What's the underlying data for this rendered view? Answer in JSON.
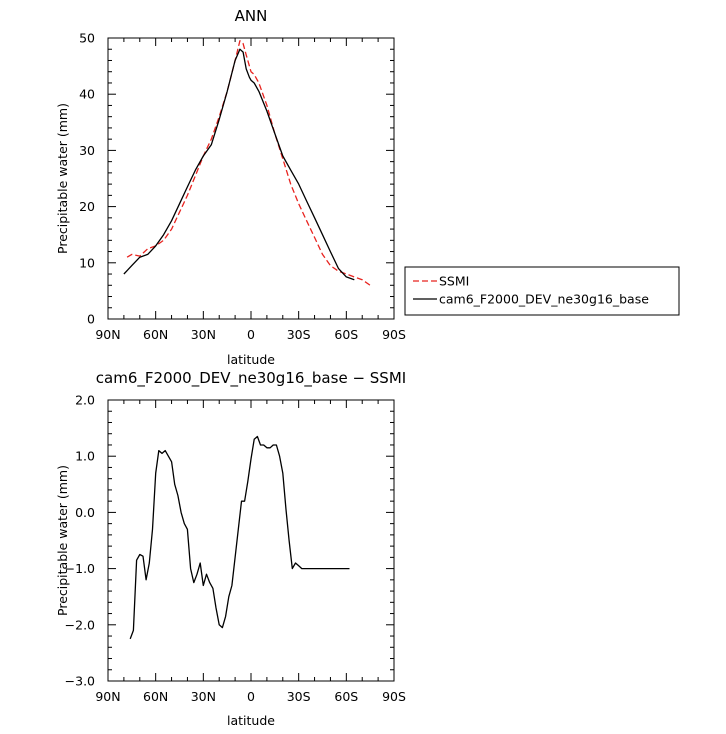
{
  "chart_data": [
    {
      "type": "line",
      "title": "ANN",
      "xlabel": "latitude",
      "ylabel": "Precipitable water (mm)",
      "xlim": [
        90,
        -90
      ],
      "ylim": [
        0,
        50
      ],
      "xticks": [
        90,
        60,
        30,
        0,
        -30,
        -60,
        -90
      ],
      "xtick_labels": [
        "90N",
        "60N",
        "30N",
        "0",
        "30S",
        "60S",
        "90S"
      ],
      "yticks": [
        0,
        10,
        20,
        30,
        40,
        50
      ],
      "ytick_labels": [
        "0",
        "10",
        "20",
        "30",
        "40",
        "50"
      ],
      "grid": false,
      "legend": "right",
      "series": [
        {
          "name": "SSMI",
          "color": "#e8231f",
          "dash": "dashed",
          "x": [
            78,
            75,
            70,
            65,
            60,
            55,
            50,
            45,
            40,
            35,
            30,
            25,
            20,
            15,
            10,
            7,
            5,
            3,
            1,
            0,
            -2,
            -5,
            -10,
            -15,
            -20,
            -25,
            -30,
            -35,
            -40,
            -45,
            -50,
            -55,
            -60,
            -65,
            -70,
            -75
          ],
          "y": [
            11,
            11.5,
            11.2,
            12.5,
            13,
            14,
            16,
            19,
            22,
            25.5,
            29,
            32,
            36,
            40.5,
            46,
            49.5,
            49,
            47,
            45,
            44,
            43.5,
            42,
            38,
            33,
            28.5,
            24,
            20.5,
            17.5,
            14.5,
            11.5,
            9.5,
            8.5,
            8,
            7.5,
            7,
            6
          ]
        },
        {
          "name": "cam6_F2000_DEV_ne30g16_base",
          "color": "#000000",
          "dash": "solid",
          "x": [
            80,
            75,
            70,
            65,
            60,
            55,
            50,
            45,
            40,
            35,
            30,
            25,
            20,
            15,
            10,
            7,
            5,
            3,
            1,
            0,
            -2,
            -5,
            -10,
            -15,
            -20,
            -25,
            -30,
            -35,
            -40,
            -45,
            -50,
            -55,
            -60,
            -65
          ],
          "y": [
            8,
            9.5,
            11,
            11.5,
            13,
            15,
            17.5,
            20.5,
            23.5,
            26.5,
            29,
            31,
            35.5,
            40.5,
            46,
            48,
            47.5,
            44.5,
            43,
            42.5,
            42,
            40.5,
            37,
            33,
            29,
            26.5,
            24,
            21,
            18,
            15,
            12,
            9,
            7.5,
            7
          ]
        }
      ]
    },
    {
      "type": "line",
      "title": "cam6_F2000_DEV_ne30g16_base − SSMI",
      "xlabel": "latitude",
      "ylabel": "Precipitable water (mm)",
      "xlim": [
        90,
        -90
      ],
      "ylim": [
        -3,
        2
      ],
      "xticks": [
        90,
        60,
        30,
        0,
        -30,
        -60,
        -90
      ],
      "xtick_labels": [
        "90N",
        "60N",
        "30N",
        "0",
        "30S",
        "60S",
        "90S"
      ],
      "yticks": [
        -3,
        -2,
        -1,
        0,
        1,
        2
      ],
      "ytick_labels": [
        "−3.0",
        "−2.0",
        "−1.0",
        "0.0",
        "1.0",
        "2.0"
      ],
      "grid": false,
      "series": [
        {
          "name": "",
          "color": "#000000",
          "dash": "solid",
          "x": [
            76,
            74,
            72,
            70,
            68,
            66,
            64,
            62,
            60,
            58,
            56,
            54,
            52,
            50,
            48,
            46,
            44,
            42,
            40,
            38,
            36,
            34,
            32,
            30,
            28,
            26,
            24,
            22,
            20,
            18,
            16,
            14,
            12,
            10,
            8,
            6,
            4,
            2,
            0,
            -2,
            -4,
            -6,
            -8,
            -10,
            -12,
            -14,
            -16,
            -18,
            -20,
            -22,
            -24,
            -26,
            -28,
            -30,
            -32,
            -34,
            -36,
            -38,
            -40,
            -42,
            -44,
            -46,
            -48,
            -50,
            -52,
            -54,
            -56,
            -58,
            -60,
            -62
          ],
          "y": [
            -2.25,
            -2.1,
            -0.85,
            -0.75,
            -0.78,
            -1.2,
            -0.9,
            -0.3,
            0.7,
            1.1,
            1.05,
            1.1,
            1.0,
            0.9,
            0.5,
            0.3,
            0,
            -0.2,
            -0.3,
            -1.0,
            -1.25,
            -1.1,
            -0.9,
            -1.3,
            -1.1,
            -1.25,
            -1.35,
            -1.7,
            -2.0,
            -2.05,
            -1.85,
            -1.5,
            -1.3,
            -0.8,
            -0.3,
            0.2,
            0.2,
            0.55,
            0.95,
            1.3,
            1.35,
            1.2,
            1.2,
            1.15,
            1.15,
            1.2,
            1.2,
            1.0,
            0.7,
            0.05,
            -0.5,
            -1.0,
            -0.9,
            -0.95,
            -1.0,
            -1.0,
            -1.0,
            -1.0,
            -1.0,
            -1.0,
            -1.0,
            -1.0,
            -1.0,
            -1.0,
            -1.0,
            -1.0,
            -1.0,
            -1.0,
            -1.0,
            -1.0
          ]
        }
      ]
    }
  ]
}
